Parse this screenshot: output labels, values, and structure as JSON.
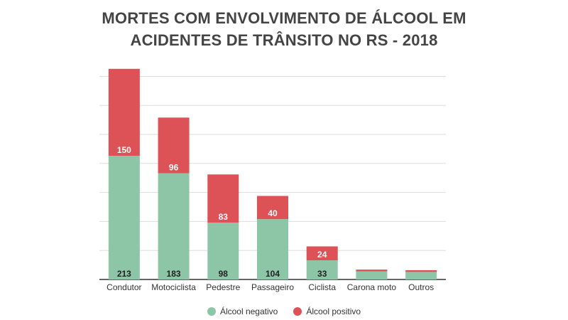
{
  "chart_data": {
    "type": "bar",
    "stacked": true,
    "title_lines": [
      "MORTES COM ENVOLVIMENTO DE ÁLCOOL EM",
      "ACIDENTES DE TRÂNSITO NO RS - 2018"
    ],
    "xlabel": "",
    "ylabel": "",
    "categories": [
      "Condutor",
      "Motociclista",
      "Pedestre",
      "Passageiro",
      "Ciclista",
      "Carona moto",
      "Outros"
    ],
    "ylim": [
      0,
      375
    ],
    "grid": true,
    "y_tick_labels_visible": false,
    "legend_position": "bottom-center",
    "series": [
      {
        "name": "Álcool negativo",
        "color": "#8dc5a7",
        "values": [
          213,
          183,
          98,
          104,
          33,
          14,
          13
        ],
        "labels": [
          "213",
          "183",
          "98",
          "104",
          "33",
          "",
          ""
        ]
      },
      {
        "name": "Álcool positivo",
        "color": "#dd5257",
        "values": [
          150,
          96,
          83,
          40,
          24,
          3,
          3
        ],
        "labels": [
          "150",
          "96",
          "83",
          "40",
          "24",
          "",
          ""
        ]
      }
    ]
  }
}
